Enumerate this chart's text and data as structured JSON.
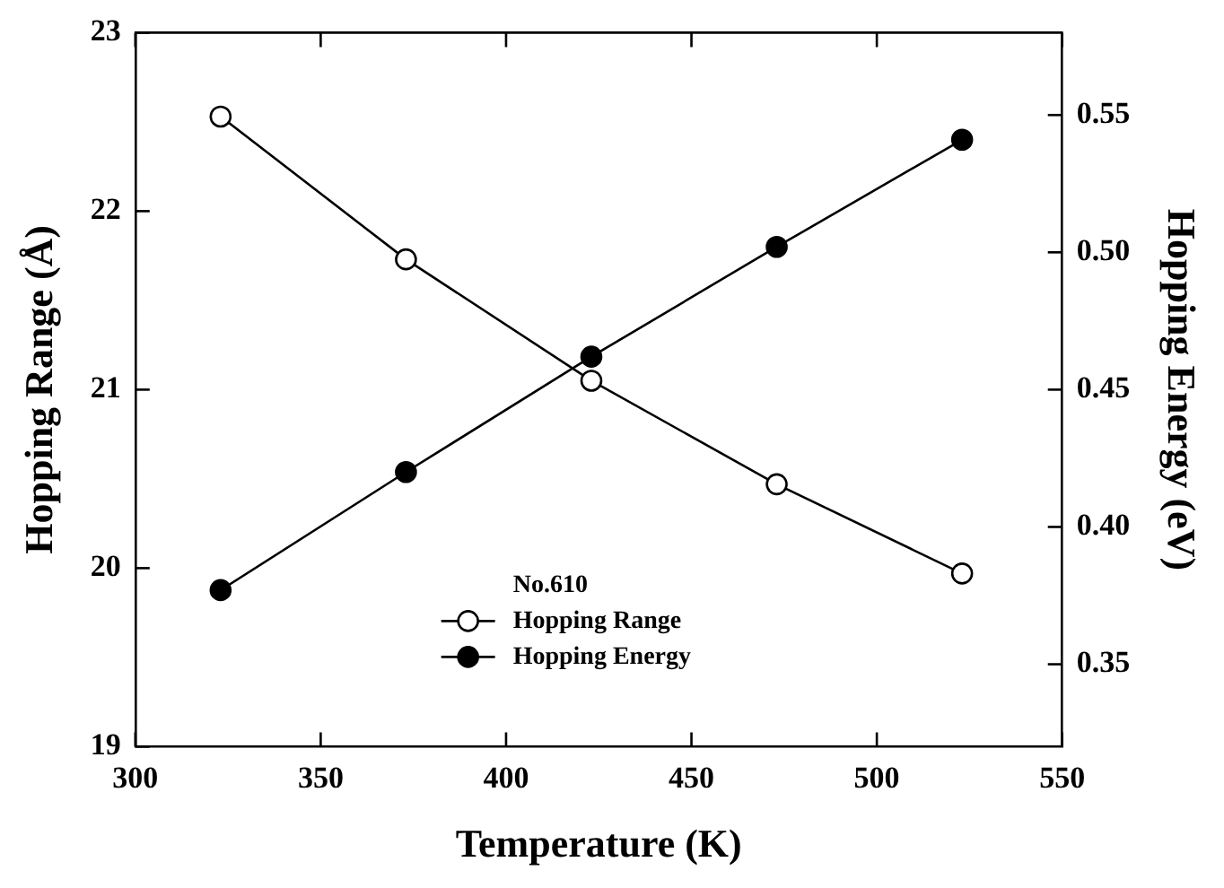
{
  "chart_data": {
    "type": "line",
    "xlabel": "Temperature (K)",
    "ylabel": "Hopping Range (Å)",
    "y2label": "Hopping Energy (eV)",
    "legend_title": "No.610",
    "legend": "bottom",
    "grid": false,
    "line_style": "solid",
    "x": [
      323,
      373,
      423,
      473,
      523
    ],
    "xlim": [
      300,
      550
    ],
    "xticks": [
      300,
      350,
      400,
      450,
      500,
      550
    ],
    "ylim": [
      19,
      23
    ],
    "yticks": [
      19,
      20,
      21,
      22,
      23
    ],
    "y2lim": [
      0.32,
      0.58
    ],
    "y2ticks": [
      {
        "value": 0.35,
        "label": "0.35"
      },
      {
        "value": 0.4,
        "label": "0.40"
      },
      {
        "value": 0.45,
        "label": "0.45"
      },
      {
        "value": 0.5,
        "label": "0.50"
      },
      {
        "value": 0.55,
        "label": "0.55"
      }
    ],
    "series": [
      {
        "name": "Hopping Range",
        "color": "#000000",
        "marker": "open-circle",
        "values": [
          22.53,
          21.73,
          21.05,
          20.47,
          19.97
        ]
      },
      {
        "name": "Hopping Energy",
        "color": "#000000",
        "marker": "circle",
        "axis": "y2",
        "values": [
          0.377,
          0.42,
          0.462,
          0.502,
          0.541
        ]
      }
    ]
  }
}
